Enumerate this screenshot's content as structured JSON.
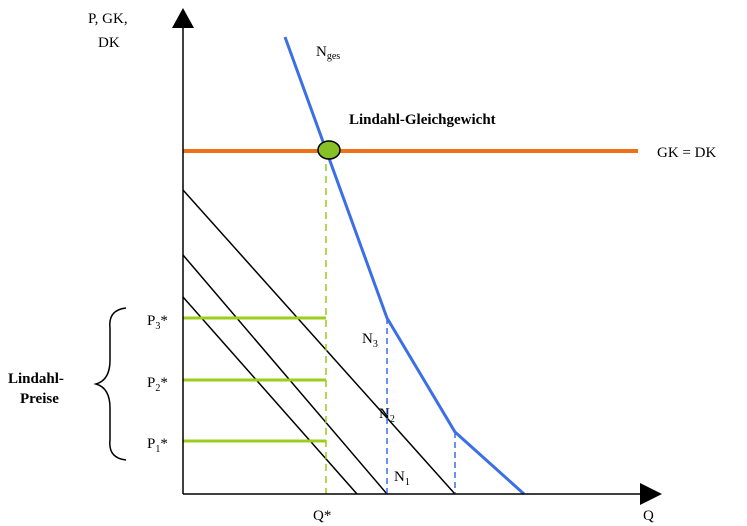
{
  "axes": {
    "y_label_lines": [
      "P, GK,",
      "DK"
    ],
    "x_label": "Q"
  },
  "curves": {
    "n_total": {
      "base": "N",
      "subscript": "ges"
    },
    "n3": {
      "base": "N",
      "subscript": "3"
    },
    "n2": {
      "base": "N",
      "subscript": "2"
    },
    "n1": {
      "base": "N",
      "subscript": "1"
    },
    "cost_line": "GK = DK"
  },
  "equilibrium_label": "Lindahl-Gleichgewicht",
  "prices": [
    {
      "base": "P",
      "subscript": "3",
      "suffix": "*"
    },
    {
      "base": "P",
      "subscript": "2",
      "suffix": "*"
    },
    {
      "base": "P",
      "subscript": "1",
      "suffix": "*"
    }
  ],
  "quantity_label": "Q*",
  "brace_label_lines": [
    "Lindahl-",
    "Preise"
  ],
  "colors": {
    "total_demand": "#3b6fe6",
    "cost_line": "#f07018",
    "price_lines": "#9ccc1c",
    "equilibrium_point": "#86c226",
    "individual_demand": "#000000",
    "axes": "#000000"
  }
}
